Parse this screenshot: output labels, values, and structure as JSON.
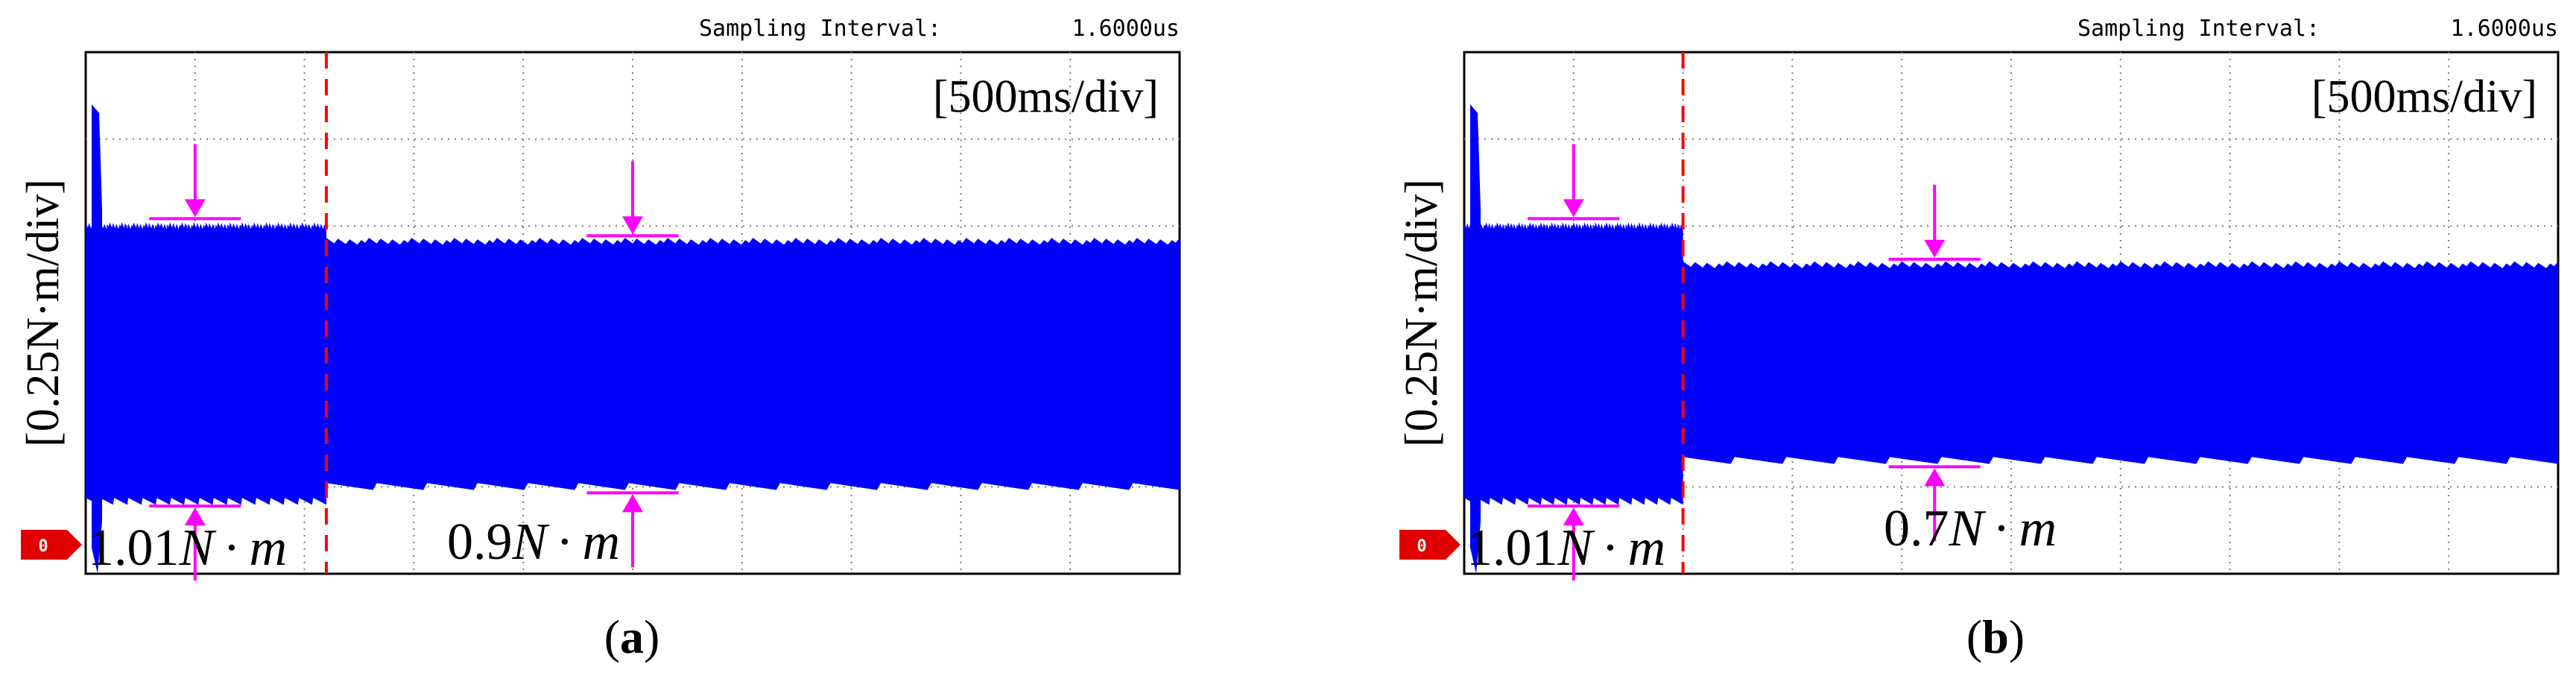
{
  "figure": {
    "panels": [
      {
        "id": "a",
        "caption_open": "(",
        "caption_letter": "a",
        "caption_close": ")",
        "sampling_label": "Sampling Interval:",
        "sampling_value": "1.6000us",
        "time_scale": "[500ms/div]",
        "y_scale": "[0.25N·m/div]",
        "zero_marker": "0",
        "left_annotation": {
          "number": "1.01",
          "unit_N": "N",
          "dot": "·",
          "unit_m": "m"
        },
        "right_annotation": {
          "number": "0.9",
          "unit_N": "N",
          "dot": "·",
          "unit_m": "m"
        },
        "colors": {
          "signal": "#0000ff",
          "marker": "#ff00ff",
          "step_line": "#ff0000",
          "zero_marker": "#e00000"
        }
      },
      {
        "id": "b",
        "caption_open": "(",
        "caption_letter": "b",
        "caption_close": ")",
        "sampling_label": "Sampling Interval:",
        "sampling_value": "1.6000us",
        "time_scale": "[500ms/div]",
        "y_scale": "[0.25N·m/div]",
        "zero_marker": "0",
        "left_annotation": {
          "number": "1.01",
          "unit_N": "N",
          "dot": "·",
          "unit_m": "m"
        },
        "right_annotation": {
          "number": "0.7",
          "unit_N": "N",
          "dot": "·",
          "unit_m": "m"
        },
        "colors": {
          "signal": "#0000ff",
          "marker": "#ff00ff",
          "step_line": "#ff0000",
          "zero_marker": "#e00000"
        }
      }
    ]
  },
  "chart_data": [
    {
      "type": "line",
      "title": "(a)",
      "xlabel": "[500ms/div]",
      "ylabel": "[0.25N·m/div]",
      "grid": true,
      "x_divisions": 10,
      "y_divisions": 6,
      "ylim_div": [
        0,
        6
      ],
      "step_time_div": 2.2,
      "series": [
        {
          "name": "load torque ripple band before step (upper envelope)",
          "x_div": [
            0,
            2.2
          ],
          "y_div": [
            4.0,
            4.0
          ]
        },
        {
          "name": "load torque ripple band before step (lower envelope)",
          "x_div": [
            0,
            2.2
          ],
          "y_div": [
            0.83,
            0.83
          ]
        },
        {
          "name": "load torque ripple band after step (upper envelope)",
          "x_div": [
            2.2,
            10
          ],
          "y_div": [
            3.82,
            3.82
          ]
        },
        {
          "name": "load torque ripple band after step (lower envelope)",
          "x_div": [
            2.2,
            10
          ],
          "y_div": [
            1.0,
            1.0
          ]
        }
      ],
      "annotations": [
        {
          "text": "1.01N·m",
          "ripple_Nm": 1.01
        },
        {
          "text": "0.9N·m",
          "ripple_Nm": 0.9
        }
      ]
    },
    {
      "type": "line",
      "title": "(b)",
      "xlabel": "[500ms/div]",
      "ylabel": "[0.25N·m/div]",
      "grid": true,
      "x_divisions": 10,
      "y_divisions": 6,
      "ylim_div": [
        0,
        6
      ],
      "step_time_div": 2.0,
      "series": [
        {
          "name": "load torque ripple band before step (upper envelope)",
          "x_div": [
            0,
            2.0
          ],
          "y_div": [
            4.0,
            4.0
          ]
        },
        {
          "name": "load torque ripple band before step (lower envelope)",
          "x_div": [
            0,
            2.0
          ],
          "y_div": [
            0.83,
            0.83
          ]
        },
        {
          "name": "load torque ripple band after step (upper envelope)",
          "x_div": [
            2.0,
            10
          ],
          "y_div": [
            3.55,
            3.55
          ]
        },
        {
          "name": "load torque ripple band after step (lower envelope)",
          "x_div": [
            2.0,
            10
          ],
          "y_div": [
            1.3,
            1.3
          ]
        }
      ],
      "annotations": [
        {
          "text": "1.01N·m",
          "ripple_Nm": 1.01
        },
        {
          "text": "0.7N·m",
          "ripple_Nm": 0.7
        }
      ]
    }
  ]
}
